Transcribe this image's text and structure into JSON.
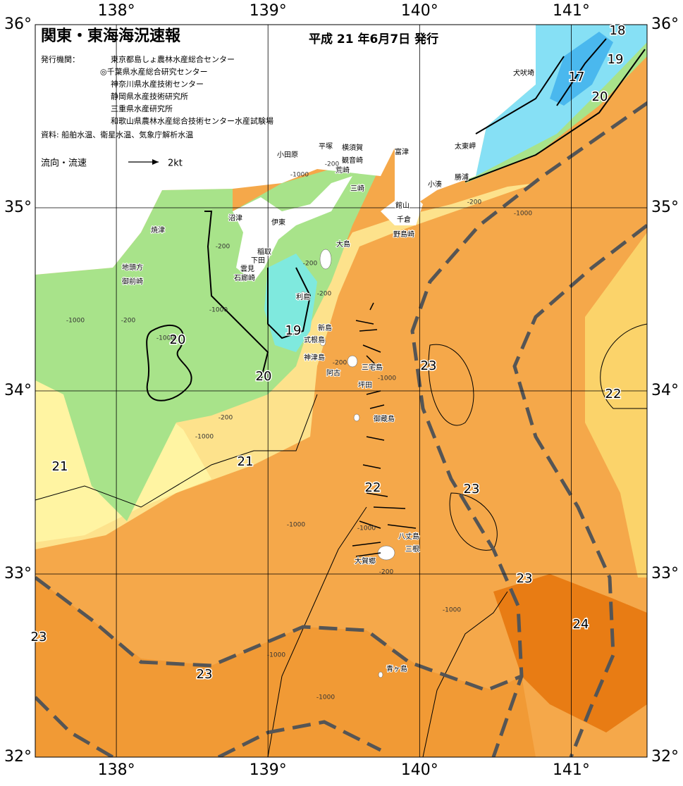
{
  "header": {
    "title": "関東・東海海況速報",
    "issued": "平成 21 年6月7日 発行",
    "publisher_label": "発行機関：",
    "publishers": [
      "東京都島しょ農林水産総合センター",
      "◎千葉県水産総合研究センター",
      "神奈川県水産技術センター",
      "静岡県水産技術研究所",
      "三重県水産研究所",
      "和歌山県農林水産総合技術センター水産試験場"
    ],
    "source": "資料: 船舶水温、衛星水温、気象庁解析水温",
    "legend_label": "流向・流速",
    "legend_scale": "2kt"
  },
  "map": {
    "lon_range": [
      137.465,
      141.5
    ],
    "lat_range": [
      32,
      36
    ],
    "lon_ticks": [
      {
        "value": 138,
        "label": "138°"
      },
      {
        "value": 139,
        "label": "139°"
      },
      {
        "value": 140,
        "label": "140°"
      },
      {
        "value": 141,
        "label": "141°"
      }
    ],
    "lat_ticks": [
      {
        "value": 36,
        "label": "36°"
      },
      {
        "value": 35,
        "label": "35°"
      },
      {
        "value": 34,
        "label": "34°"
      },
      {
        "value": 33,
        "label": "33°"
      },
      {
        "value": 32,
        "label": "32°"
      }
    ],
    "places": [
      "犬吠埼",
      "太東岬",
      "勝浦",
      "小湊",
      "富津",
      "横須賀",
      "平塚",
      "小田原",
      "観音崎",
      "荒崎",
      "三崎",
      "館山",
      "千倉",
      "野島崎",
      "大島",
      "沼津",
      "伊東",
      "焼津",
      "稲取",
      "下田",
      "雲見",
      "石廊崎",
      "地頭方",
      "御前崎",
      "利島",
      "新島",
      "式根島",
      "神津島",
      "三宅島",
      "阿古",
      "坪田",
      "御蔵島",
      "八丈島",
      "三根",
      "大賀郷",
      "青ヶ島"
    ],
    "isotherm_labels": [
      "18",
      "19",
      "17",
      "20",
      "19",
      "20",
      "20",
      "23",
      "22",
      "21",
      "21",
      "22",
      "23",
      "23",
      "24",
      "23",
      "23"
    ],
    "depth_labels": [
      "-200",
      "-1000",
      "-200",
      "-1000",
      "-200",
      "-200",
      "-200",
      "-1000",
      "-1000",
      "-200",
      "-1000",
      "-200",
      "-1000",
      "-200",
      "-1000",
      "-1000",
      "-1000",
      "-200",
      "-1000",
      "-1000",
      "-1000"
    ]
  }
}
